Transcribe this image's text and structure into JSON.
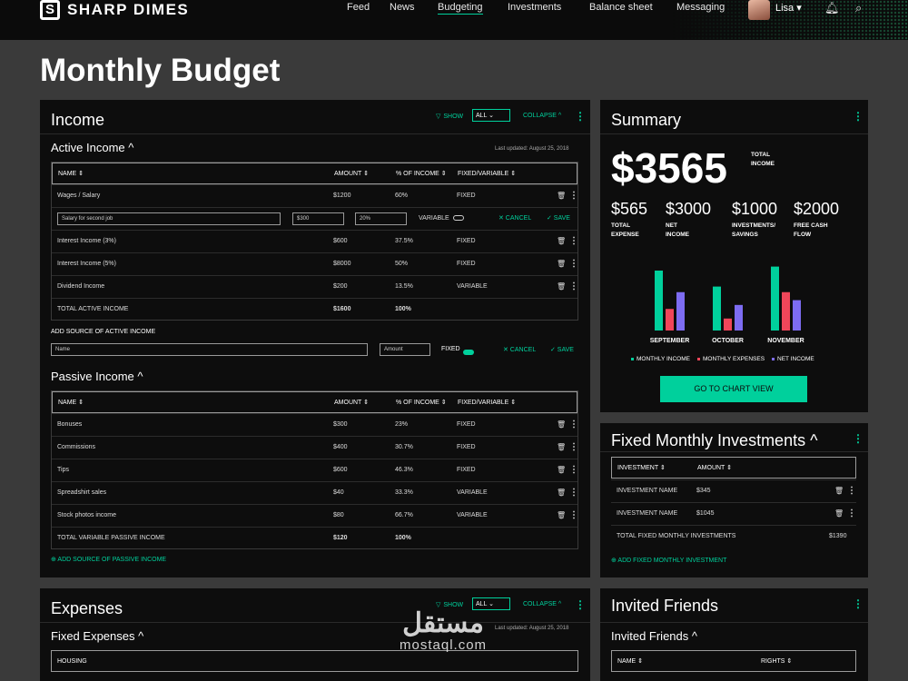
{
  "brand": {
    "name": "SHARP DIMES",
    "mark": "S"
  },
  "nav": {
    "links": [
      "Feed",
      "News",
      "Budgeting",
      "Investments",
      "Balance sheet",
      "Messaging"
    ],
    "user": "Lisa ▾"
  },
  "page_title": "Monthly Budget",
  "income": {
    "title": "Income",
    "show": "SHOW",
    "show_value": "ALL ⌄",
    "collapse": "COLLAPSE ^",
    "active": {
      "title": "Active Income ^",
      "updated": "Last updated: August 25, 2018",
      "headers": [
        "NAME ⇕",
        "AMOUNT ⇕",
        "% OF INCOME ⇕",
        "FIXED/VARIABLE ⇕"
      ],
      "rows": [
        [
          "Wages / Salary",
          "$1200",
          "60%",
          "FIXED"
        ],
        [
          "Interest Income (3%)",
          "$600",
          "37.5%",
          "FIXED"
        ],
        [
          "Interest Income (5%)",
          "$8000",
          "50%",
          "FIXED"
        ],
        [
          "Dividend Income",
          "$200",
          "13.5%",
          "VARIABLE"
        ]
      ],
      "edit": {
        "name": "Salary for second job",
        "amount": "$300",
        "pct": "20%",
        "type": "VARIABLE",
        "cancel": "✕ CANCEL",
        "save": "✓ SAVE"
      },
      "total": [
        "TOTAL ACTIVE INCOME",
        "$1600",
        "100%"
      ],
      "add_label": "ADD SOURCE OF ACTIVE INCOME",
      "name_ph": "Name",
      "amount_ph": "Amount",
      "fixed": "FIXED",
      "cancel": "✕ CANCEL",
      "save": "✓ SAVE"
    },
    "passive": {
      "title": "Passive Income ^",
      "headers": [
        "NAME ⇕",
        "AMOUNT ⇕",
        "% OF INCOME ⇕",
        "FIXED/VARIABLE ⇕"
      ],
      "rows": [
        [
          "Bonuses",
          "$300",
          "23%",
          "FIXED"
        ],
        [
          "Commissions",
          "$400",
          "30.7%",
          "FIXED"
        ],
        [
          "Tips",
          "$600",
          "46.3%",
          "FIXED"
        ],
        [
          "Spreadshirt sales",
          "$40",
          "33.3%",
          "VARIABLE"
        ],
        [
          "Stock photos income",
          "$80",
          "66.7%",
          "VARIABLE"
        ]
      ],
      "total": [
        "TOTAL VARIABLE PASSIVE INCOME",
        "$120",
        "100%"
      ],
      "add": "⊕ ADD SOURCE OF PASSIVE INCOME"
    }
  },
  "summary": {
    "title": "Summary",
    "big": "$3565",
    "big_label": "TOTAL INCOME",
    "stats": [
      {
        "v": "$565",
        "l": "TOTAL EXPENSE"
      },
      {
        "v": "$3000",
        "l": "NET INCOME"
      },
      {
        "v": "$1000",
        "l": "INVESTMENTS/ SAVINGS"
      },
      {
        "v": "$2000",
        "l": "FREE CASH FLOW"
      }
    ],
    "button": "GO TO CHART VIEW"
  },
  "chart_data": {
    "type": "bar",
    "categories": [
      "SEPTEMBER",
      "OCTOBER",
      "NOVEMBER"
    ],
    "series": [
      {
        "name": "MONTHLY INCOME",
        "values": [
          75,
          55,
          80
        ],
        "color": "#00d09c"
      },
      {
        "name": "MONTHLY EXPENSES",
        "values": [
          27,
          15,
          48
        ],
        "color": "#f0465a"
      },
      {
        "name": "NET INCOME",
        "values": [
          48,
          32,
          38
        ],
        "color": "#7d6cf2"
      }
    ],
    "ylim": [
      0,
      100
    ],
    "grid": false,
    "legend": "bottom"
  },
  "investments": {
    "title": "Fixed Monthly Investments ^",
    "headers": [
      "INVESTMENT ⇕",
      "AMOUNT ⇕"
    ],
    "rows": [
      [
        "INVESTMENT NAME",
        "$345"
      ],
      [
        "INVESTMENT NAME",
        "$1045"
      ]
    ],
    "total": [
      "TOTAL FIXED MONTHLY INVESTMENTS",
      "$1390"
    ],
    "add": "⊕ ADD FIXED MONTHLY INVESTMENT"
  },
  "expenses": {
    "title": "Expenses",
    "show": "SHOW",
    "show_value": "ALL ⌄",
    "collapse": "COLLAPSE ^",
    "fixed_title": "Fixed Expenses ^",
    "updated": "Last updated: August 25, 2018",
    "row": "HOUSING"
  },
  "friends": {
    "title": "Invited Friends",
    "sub": "Invited Friends ^",
    "headers": [
      "NAME ⇕",
      "RIGHTS ⇕"
    ]
  },
  "watermark": {
    "ar": "مستقل",
    "en": "mostaql.com"
  }
}
